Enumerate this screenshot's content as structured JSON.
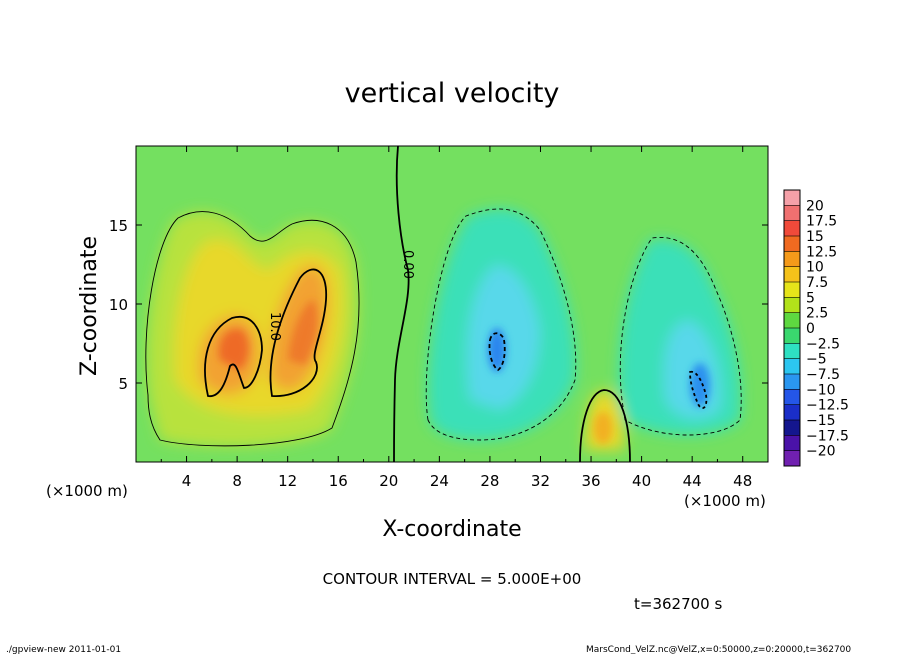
{
  "chart_data": {
    "type": "heatmap",
    "title": "vertical velocity",
    "xlabel": "X-coordinate",
    "ylabel": "Z-coordinate",
    "x_units_label": "(×1000 m)",
    "x_units_label_right": "(×1000 m)",
    "xlim": [
      0,
      50
    ],
    "ylim": [
      0,
      20
    ],
    "x_ticks": [
      "4",
      "8",
      "12",
      "16",
      "20",
      "24",
      "28",
      "32",
      "36",
      "40",
      "44",
      "48"
    ],
    "y_ticks": [
      "5",
      "10",
      "15"
    ],
    "contour_interval_text": "CONTOUR INTERVAL = 5.000E+00",
    "contour_labels": [
      "0.00",
      "10.0"
    ],
    "time_text": "t=362700 s",
    "colorbar": {
      "labels": [
        "20",
        "17.5",
        "15",
        "12.5",
        "10",
        "7.5",
        "5",
        "2.5",
        "0",
        "−2.5",
        "−5",
        "−7.5",
        "−10",
        "−12.5",
        "−15",
        "−17.5",
        "−20"
      ],
      "colors": [
        "#f5a0a8",
        "#f07070",
        "#f04a3a",
        "#f06a20",
        "#f59a1a",
        "#f5c21a",
        "#e6e41a",
        "#b2e21a",
        "#5ed840",
        "#3ad86e",
        "#2ee0c2",
        "#2cc6f0",
        "#2a96f0",
        "#2456e8",
        "#1a2ec8",
        "#14168e",
        "#4a12a8",
        "#7020b0"
      ]
    },
    "features": [
      {
        "kind": "updraft",
        "x": 9,
        "z": 7.5,
        "w_max": 13
      },
      {
        "kind": "updraft",
        "x": 13,
        "z": 7,
        "w_max": 11
      },
      {
        "kind": "updraft",
        "x": 37,
        "z": 2.5,
        "w_max": 9
      },
      {
        "kind": "downdraft",
        "x": 29,
        "z": 7.5,
        "w_min": -10
      },
      {
        "kind": "downdraft",
        "x": 45,
        "z": 5,
        "w_min": -10
      }
    ]
  },
  "footer": {
    "left": "./gpview-new   2011-01-01",
    "right": "MarsCond_VelZ.nc@VelZ,x=0:50000,z=0:20000,t=362700"
  }
}
